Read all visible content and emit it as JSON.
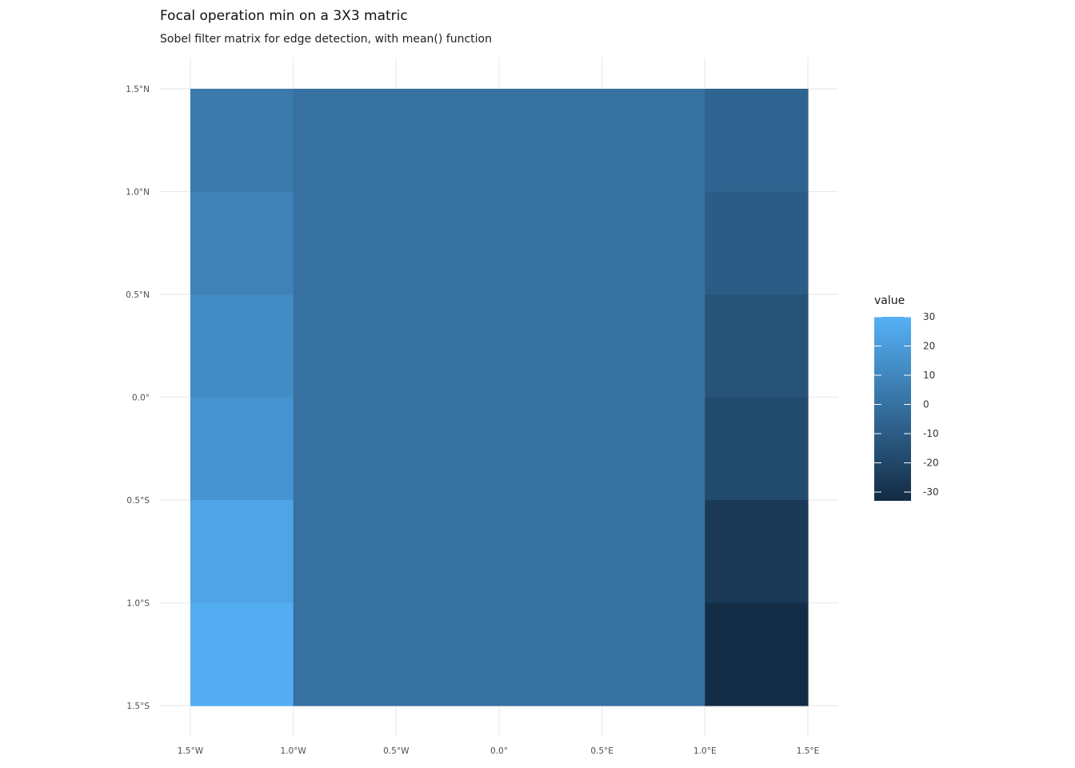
{
  "chart_data": {
    "type": "heatmap",
    "title": "Focal operation min on a 3X3 matric",
    "subtitle": "Sobel filter matrix for edge detection, with mean() function",
    "x_ticks": [
      {
        "value": -1.5,
        "label": "1.5°W"
      },
      {
        "value": -1.0,
        "label": "1.0°W"
      },
      {
        "value": -0.5,
        "label": "0.5°W"
      },
      {
        "value": 0.0,
        "label": "0.0°"
      },
      {
        "value": 0.5,
        "label": "0.5°E"
      },
      {
        "value": 1.0,
        "label": "1.0°E"
      },
      {
        "value": 1.5,
        "label": "1.5°E"
      }
    ],
    "y_ticks": [
      {
        "value": 1.5,
        "label": "1.5°N"
      },
      {
        "value": 1.0,
        "label": "1.0°N"
      },
      {
        "value": 0.5,
        "label": "0.5°N"
      },
      {
        "value": 0.0,
        "label": "0.0°"
      },
      {
        "value": -0.5,
        "label": "0.5°S"
      },
      {
        "value": -1.0,
        "label": "1.0°S"
      },
      {
        "value": -1.5,
        "label": "1.5°S"
      }
    ],
    "xlim": [
      -1.5,
      1.5
    ],
    "ylim": [
      -1.5,
      1.5
    ],
    "grid": true,
    "x_edges": [
      -1.5,
      -1.0,
      1.0,
      1.5
    ],
    "y_edges": [
      1.5,
      1.0,
      0.5,
      0.0,
      -0.5,
      -1.0,
      -1.5
    ],
    "values": [
      [
        4,
        0,
        -6
      ],
      [
        8,
        0,
        -10
      ],
      [
        12,
        0,
        -14
      ],
      [
        16,
        0,
        -18
      ],
      [
        24,
        0,
        -26
      ],
      [
        28,
        0,
        -32
      ]
    ],
    "legend": {
      "title": "value",
      "position": "right",
      "min": -33,
      "max": 30,
      "low_color": "#132B43",
      "high_color": "#56B1F7",
      "breaks": [
        30,
        20,
        10,
        0,
        -10,
        -20,
        -30
      ],
      "break_labels": [
        "30",
        "20",
        "10",
        "0",
        "-10",
        "-20",
        "-30"
      ]
    }
  }
}
